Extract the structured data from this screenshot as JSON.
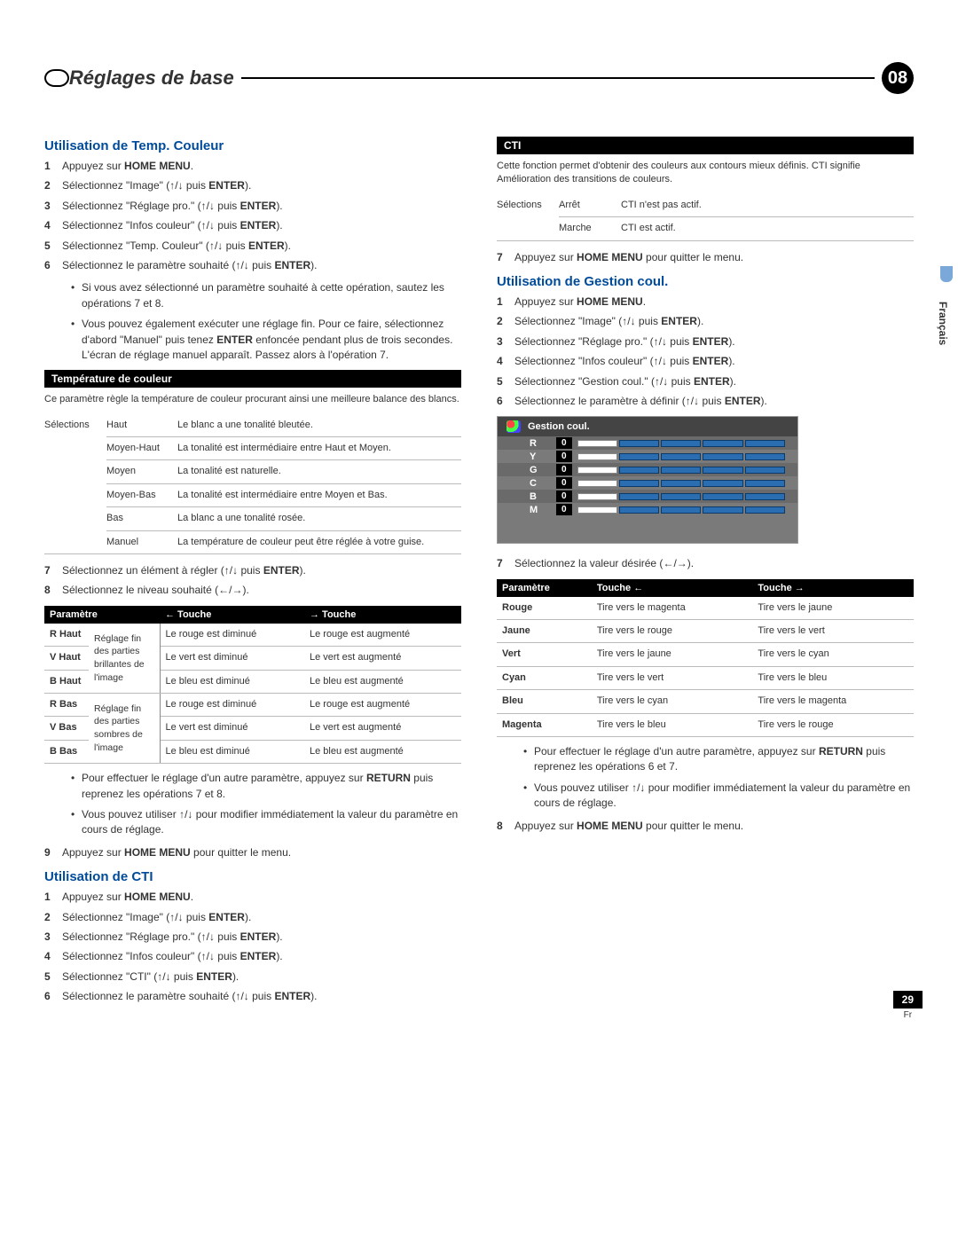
{
  "header": {
    "title": "Réglages de base",
    "chapter": "08"
  },
  "side": {
    "lang": "Français"
  },
  "footer": {
    "page": "29",
    "lang": "Fr"
  },
  "arrows": {
    "up": "↑",
    "down": "↓",
    "left": "←",
    "right": "→",
    "updown": "↑/↓",
    "leftright": "←/→"
  },
  "left": {
    "sec1": {
      "title": "Utilisation de Temp. Couleur",
      "steps": [
        {
          "n": "1",
          "pre": "Appuyez sur ",
          "b": "HOME MENU",
          "post": "."
        },
        {
          "n": "2",
          "pre": "Sélectionnez \"Image\" (",
          "arrow": "updown",
          "mid": " puis ",
          "b": "ENTER",
          "post": ")."
        },
        {
          "n": "3",
          "pre": "Sélectionnez \"Réglage pro.\" (",
          "arrow": "updown",
          "mid": " puis ",
          "b": "ENTER",
          "post": ")."
        },
        {
          "n": "4",
          "pre": "Sélectionnez \"Infos couleur\" (",
          "arrow": "updown",
          "mid": " puis ",
          "b": "ENTER",
          "post": ")."
        },
        {
          "n": "5",
          "pre": "Sélectionnez \"Temp. Couleur\" (",
          "arrow": "updown",
          "mid": " puis ",
          "b": "ENTER",
          "post": ")."
        },
        {
          "n": "6",
          "pre": "Sélectionnez le paramètre souhaité (",
          "arrow": "updown",
          "mid": " puis ",
          "b": "ENTER",
          "post": ")."
        }
      ],
      "bullets": [
        "Si vous avez sélectionné un paramètre souhaité à cette opération, sautez les opérations 7 et 8.",
        "Vous pouvez également exécuter une réglage fin. Pour ce faire, sélectionnez d'abord \"Manuel\" puis tenez ENTER enfoncée pendant plus de trois secondes. L'écran de réglage manuel apparaît. Passez alors à l'opération 7."
      ],
      "box1": {
        "title": "Température de couleur",
        "desc": "Ce paramètre règle la température de couleur procurant ainsi une meilleure balance des blancs.",
        "selLabel": "Sélections",
        "rows": [
          [
            "Haut",
            "Le blanc a une tonalité bleutée."
          ],
          [
            "Moyen-Haut",
            "La tonalité est intermédiaire entre Haut et Moyen."
          ],
          [
            "Moyen",
            "La tonalité est naturelle."
          ],
          [
            "Moyen-Bas",
            "La tonalité est intermédiaire entre Moyen et Bas."
          ],
          [
            "Bas",
            "La blanc a une tonalité rosée."
          ],
          [
            "Manuel",
            "La température de couleur peut être réglée à votre guise."
          ]
        ]
      },
      "steps2": [
        {
          "n": "7",
          "pre": "Sélectionnez un élément à régler (",
          "arrow": "updown",
          "mid": " puis ",
          "b": "ENTER",
          "post": ")."
        },
        {
          "n": "8",
          "pre": "Sélectionnez le niveau souhaité (",
          "arrow": "leftright",
          "post": ")."
        }
      ],
      "table2": {
        "head": [
          "Paramètre",
          "",
          "← Touche",
          "→ Touche"
        ],
        "groups": [
          {
            "note": "Réglage fin des parties brillantes de l'image",
            "rows": [
              [
                "R Haut",
                "Le rouge est diminué",
                "Le rouge est augmenté"
              ],
              [
                "V Haut",
                "Le vert est diminué",
                "Le vert est augmenté"
              ],
              [
                "B Haut",
                "Le bleu est diminué",
                "Le bleu est augmenté"
              ]
            ]
          },
          {
            "note": "Réglage fin des parties sombres de l'image",
            "rows": [
              [
                "R Bas",
                "Le rouge est diminué",
                "Le rouge est augmenté"
              ],
              [
                "V Bas",
                "Le vert est diminué",
                "Le vert est augmenté"
              ],
              [
                "B Bas",
                "Le bleu est diminué",
                "Le bleu est augmenté"
              ]
            ]
          }
        ]
      },
      "bullets2": [
        "Pour effectuer le réglage d'un autre paramètre, appuyez sur RETURN puis reprenez les opérations 7 et 8.",
        "Vous pouvez utiliser ↑/↓ pour modifier immédiatement la valeur du paramètre en cours de réglage."
      ],
      "step9": {
        "n": "9",
        "pre": "Appuyez sur ",
        "b": "HOME MENU",
        "post": " pour quitter le menu."
      }
    },
    "sec2": {
      "title": "Utilisation de CTI",
      "steps": [
        {
          "n": "1",
          "pre": "Appuyez sur ",
          "b": "HOME MENU",
          "post": "."
        },
        {
          "n": "2",
          "pre": "Sélectionnez \"Image\" (",
          "arrow": "updown",
          "mid": " puis ",
          "b": "ENTER",
          "post": ")."
        },
        {
          "n": "3",
          "pre": "Sélectionnez \"Réglage pro.\" (",
          "arrow": "updown",
          "mid": " puis ",
          "b": "ENTER",
          "post": ")."
        },
        {
          "n": "4",
          "pre": "Sélectionnez \"Infos couleur\" (",
          "arrow": "updown",
          "mid": " puis ",
          "b": "ENTER",
          "post": ")."
        },
        {
          "n": "5",
          "pre": "Sélectionnez \"CTI\" (",
          "arrow": "updown",
          "mid": " puis ",
          "b": "ENTER",
          "post": ")."
        },
        {
          "n": "6",
          "pre": "Sélectionnez le paramètre souhaité (",
          "arrow": "updown",
          "mid": " puis ",
          "b": "ENTER",
          "post": ")."
        }
      ]
    }
  },
  "right": {
    "cti": {
      "title": "CTI",
      "desc": "Cette fonction permet d'obtenir des couleurs aux contours mieux définis. CTI signifie Amélioration des transitions de couleurs.",
      "selLabel": "Sélections",
      "rows": [
        [
          "Arrêt",
          "CTI n'est pas actif."
        ],
        [
          "Marche",
          "CTI est actif."
        ]
      ]
    },
    "step7": {
      "n": "7",
      "pre": "Appuyez sur ",
      "b": "HOME MENU",
      "post": " pour quitter le menu."
    },
    "sec3": {
      "title": "Utilisation de Gestion coul.",
      "steps": [
        {
          "n": "1",
          "pre": "Appuyez sur ",
          "b": "HOME MENU",
          "post": "."
        },
        {
          "n": "2",
          "pre": "Sélectionnez \"Image\" (",
          "arrow": "updown",
          "mid": " puis ",
          "b": "ENTER",
          "post": ")."
        },
        {
          "n": "3",
          "pre": "Sélectionnez \"Réglage pro.\" (",
          "arrow": "updown",
          "mid": " puis ",
          "b": "ENTER",
          "post": ")."
        },
        {
          "n": "4",
          "pre": "Sélectionnez \"Infos couleur\" (",
          "arrow": "updown",
          "mid": " puis ",
          "b": "ENTER",
          "post": ")."
        },
        {
          "n": "5",
          "pre": "Sélectionnez \"Gestion coul.\" (",
          "arrow": "updown",
          "mid": " puis ",
          "b": "ENTER",
          "post": ")."
        },
        {
          "n": "6",
          "pre": "Sélectionnez le paramètre à définir (",
          "arrow": "updown",
          "mid": " puis ",
          "b": "ENTER",
          "post": ")."
        }
      ],
      "panel": {
        "title": "Gestion coul.",
        "rows": [
          {
            "ch": "R",
            "val": "0"
          },
          {
            "ch": "Y",
            "val": "0"
          },
          {
            "ch": "G",
            "val": "0"
          },
          {
            "ch": "C",
            "val": "0"
          },
          {
            "ch": "B",
            "val": "0"
          },
          {
            "ch": "M",
            "val": "0"
          }
        ]
      },
      "step7b": {
        "n": "7",
        "pre": "Sélectionnez la valeur désirée (",
        "arrow": "leftright",
        "post": ")."
      },
      "table": {
        "head": [
          "Paramètre",
          "Touche ←",
          "Touche →"
        ],
        "rows": [
          [
            "Rouge",
            "Tire vers le magenta",
            "Tire vers le jaune"
          ],
          [
            "Jaune",
            "Tire vers le rouge",
            "Tire vers le vert"
          ],
          [
            "Vert",
            "Tire vers le jaune",
            "Tire vers le cyan"
          ],
          [
            "Cyan",
            "Tire vers le vert",
            "Tire vers le bleu"
          ],
          [
            "Bleu",
            "Tire vers le cyan",
            "Tire vers le magenta"
          ],
          [
            "Magenta",
            "Tire vers le bleu",
            "Tire vers le rouge"
          ]
        ]
      },
      "bullets": [
        "Pour effectuer le réglage d'un autre paramètre, appuyez sur RETURN puis reprenez les opérations 6 et 7.",
        "Vous pouvez utiliser ↑/↓ pour modifier immédiatement la valeur du paramètre en cours de réglage."
      ],
      "step8": {
        "n": "8",
        "pre": "Appuyez sur ",
        "b": "HOME MENU",
        "post": " pour quitter le menu."
      }
    }
  }
}
